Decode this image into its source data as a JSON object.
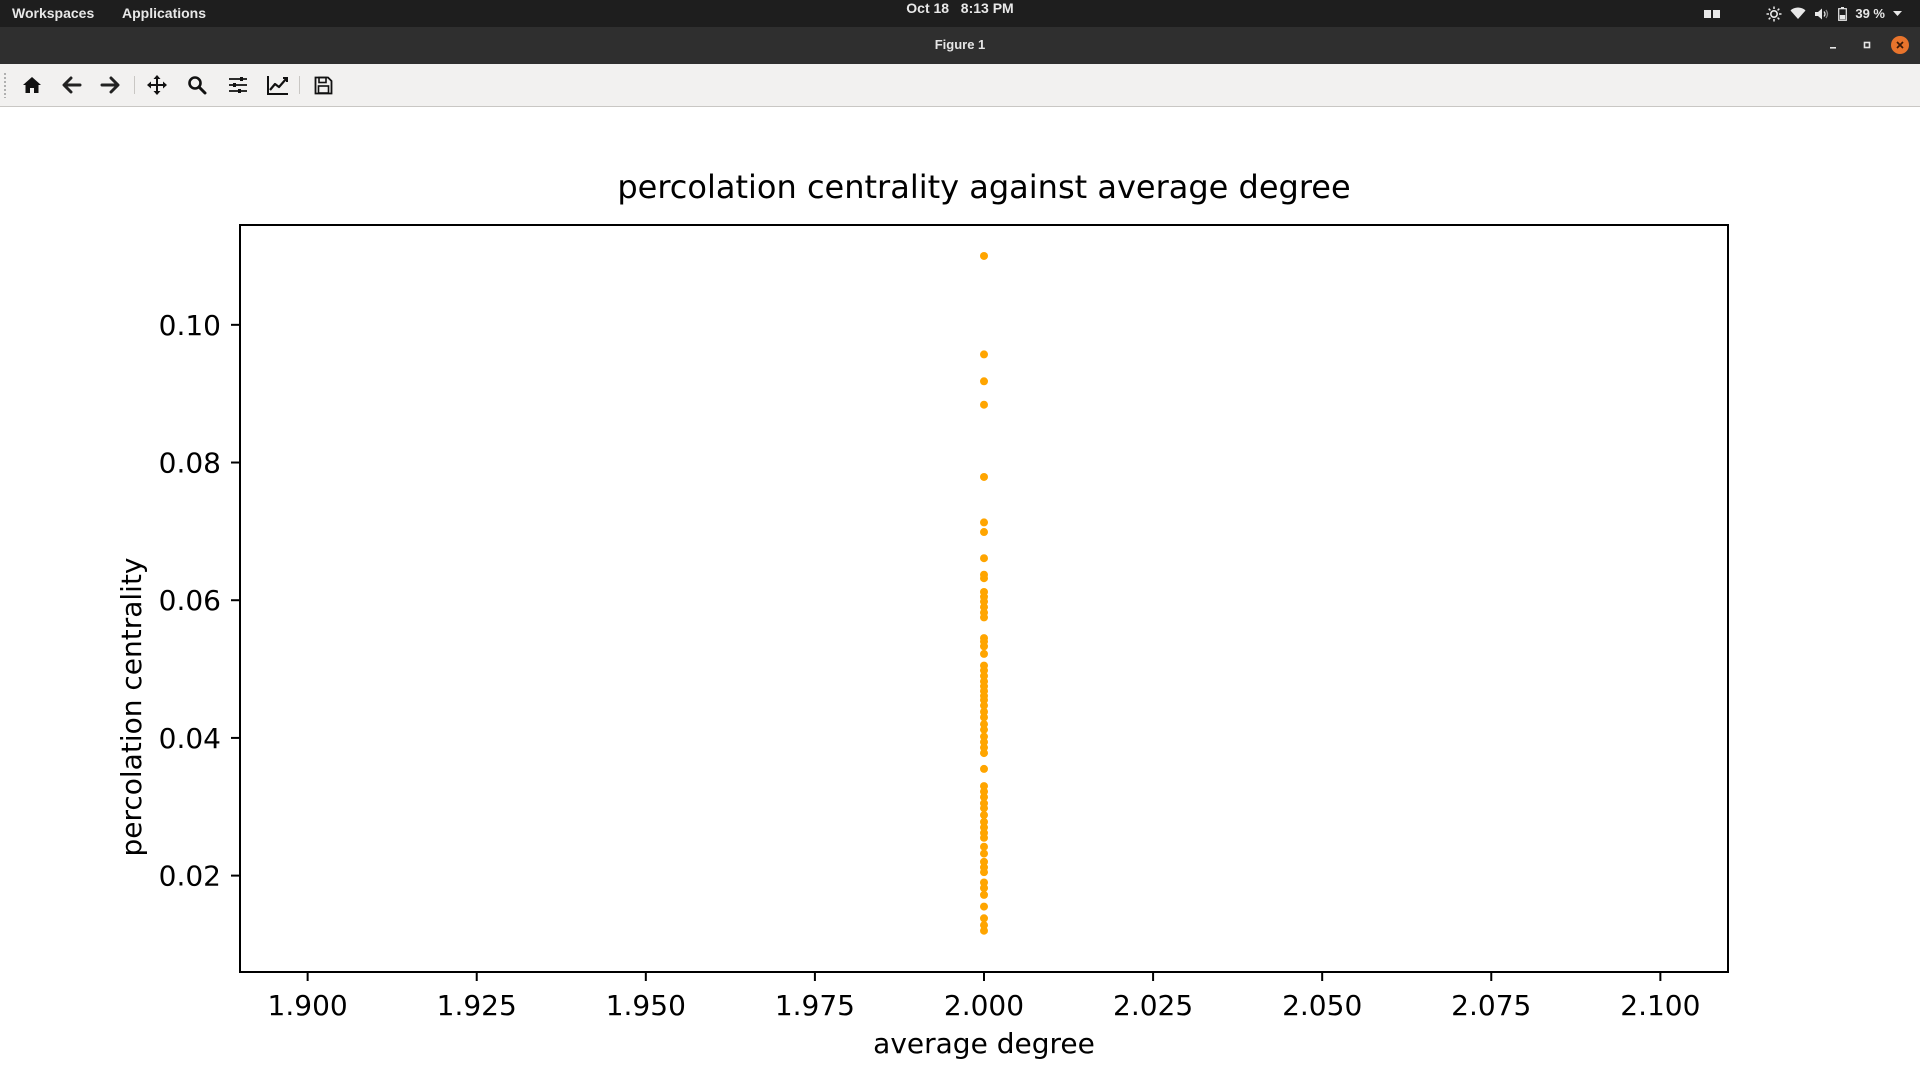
{
  "topbar": {
    "workspaces": "Workspaces",
    "applications": "Applications",
    "date": "Oct 18",
    "time": "8:13 PM",
    "battery": "39 %"
  },
  "window": {
    "title": "Figure 1"
  },
  "toolbar": {
    "tools": [
      "home-icon",
      "back-arrow-icon",
      "forward-arrow-icon",
      "pan-icon",
      "zoom-icon",
      "subplots-config-icon",
      "edit-axes-icon",
      "save-icon"
    ]
  },
  "colors": {
    "point": "#ffa500",
    "topbar": "#1e1e1e",
    "titlebar": "#2f2f2f",
    "close_button": "#e8742c"
  },
  "chart_data": {
    "type": "scatter",
    "title": "percolation centrality against average degree",
    "xlabel": "average degree",
    "ylabel": "percolation centrality",
    "xlim": [
      1.89,
      2.11
    ],
    "ylim": [
      0.006,
      0.1145
    ],
    "xticks": [
      "1.900",
      "1.925",
      "1.950",
      "1.975",
      "2.000",
      "2.025",
      "2.050",
      "2.075",
      "2.100"
    ],
    "xtick_values": [
      1.9,
      1.925,
      1.95,
      1.975,
      2.0,
      2.025,
      2.05,
      2.075,
      2.1
    ],
    "yticks": [
      "0.02",
      "0.04",
      "0.06",
      "0.08",
      "0.10"
    ],
    "ytick_values": [
      0.02,
      0.04,
      0.06,
      0.08,
      0.1
    ],
    "grid": false,
    "x": 2.0,
    "y": [
      0.11,
      0.0957,
      0.0918,
      0.0884,
      0.0779,
      0.0713,
      0.0699,
      0.0661,
      0.0637,
      0.0632,
      0.0612,
      0.0605,
      0.0598,
      0.059,
      0.0582,
      0.0575,
      0.0545,
      0.054,
      0.0533,
      0.0522,
      0.0505,
      0.0498,
      0.049,
      0.0482,
      0.0475,
      0.0468,
      0.0461,
      0.0455,
      0.0447,
      0.0438,
      0.043,
      0.042,
      0.0412,
      0.0402,
      0.0394,
      0.0386,
      0.0378,
      0.0355,
      0.033,
      0.0322,
      0.0314,
      0.0305,
      0.0298,
      0.0288,
      0.0278,
      0.027,
      0.0262,
      0.0255,
      0.0242,
      0.0232,
      0.022,
      0.0212,
      0.0205,
      0.019,
      0.0182,
      0.0172,
      0.0155,
      0.0138,
      0.0128,
      0.012
    ]
  }
}
